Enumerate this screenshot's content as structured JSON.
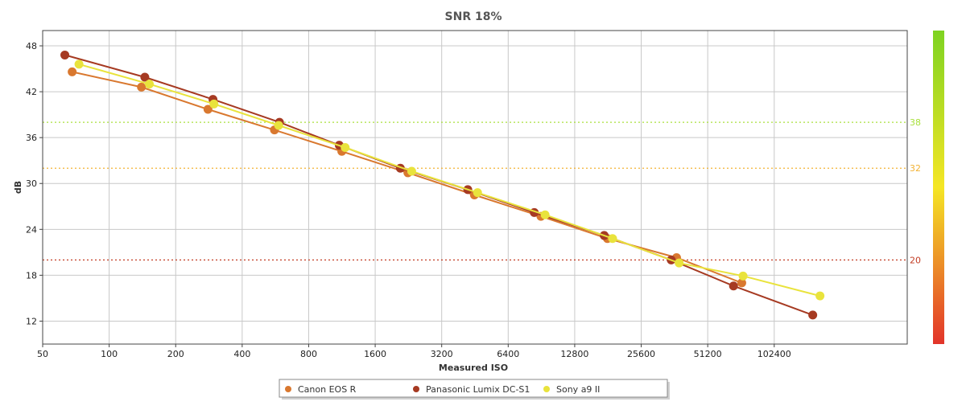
{
  "chart_data": {
    "type": "line",
    "title": "SNR 18%",
    "xlabel": "Measured ISO",
    "ylabel": "dB",
    "x_scale": "log2",
    "xlim": [
      50,
      409600
    ],
    "ylim": [
      9,
      50
    ],
    "x_ticks": [
      50,
      100,
      200,
      400,
      800,
      1600,
      3200,
      6400,
      12800,
      25600,
      51200,
      102400
    ],
    "x_tick_labels": [
      "50",
      "100",
      "200",
      "400",
      "800",
      "1600",
      "3200",
      "6400",
      "12800",
      "25600",
      "51200",
      "102400"
    ],
    "y_ticks": [
      12,
      18,
      24,
      30,
      36,
      42,
      48
    ],
    "y_tick_labels": [
      "12",
      "18",
      "24",
      "30",
      "36",
      "42",
      "48"
    ],
    "grid": true,
    "legend_position": "bottom-center",
    "reference_lines": [
      {
        "value": 38,
        "label": "38",
        "color": "#a8e03c"
      },
      {
        "value": 32,
        "label": "32",
        "color": "#f2b233"
      },
      {
        "value": 20,
        "label": "20",
        "color": "#c23b22"
      }
    ],
    "color_scale": {
      "colors": [
        "#7ed321",
        "#f5e625",
        "#e2342a"
      ]
    },
    "series": [
      {
        "name": "Canon EOS R",
        "color": "#d9782f",
        "points": [
          {
            "x": 68,
            "y": 44.6
          },
          {
            "x": 140,
            "y": 42.6
          },
          {
            "x": 280,
            "y": 39.7
          },
          {
            "x": 560,
            "y": 37.0
          },
          {
            "x": 1130,
            "y": 34.2
          },
          {
            "x": 2250,
            "y": 31.4
          },
          {
            "x": 4500,
            "y": 28.5
          },
          {
            "x": 9000,
            "y": 25.7
          },
          {
            "x": 18000,
            "y": 22.8
          },
          {
            "x": 37000,
            "y": 20.3
          },
          {
            "x": 73000,
            "y": 17.0
          }
        ]
      },
      {
        "name": "Panasonic Lumix DC-S1",
        "color": "#a63a22",
        "points": [
          {
            "x": 63,
            "y": 46.8
          },
          {
            "x": 145,
            "y": 43.9
          },
          {
            "x": 295,
            "y": 41.0
          },
          {
            "x": 590,
            "y": 38.0
          },
          {
            "x": 1100,
            "y": 35.0
          },
          {
            "x": 2080,
            "y": 32.0
          },
          {
            "x": 4200,
            "y": 29.2
          },
          {
            "x": 8400,
            "y": 26.2
          },
          {
            "x": 17400,
            "y": 23.2
          },
          {
            "x": 35000,
            "y": 20.0
          },
          {
            "x": 67000,
            "y": 16.6
          },
          {
            "x": 153000,
            "y": 12.8
          }
        ]
      },
      {
        "name": "Sony a9 II",
        "color": "#e9e33c",
        "points": [
          {
            "x": 73,
            "y": 45.6
          },
          {
            "x": 152,
            "y": 43.0
          },
          {
            "x": 298,
            "y": 40.4
          },
          {
            "x": 585,
            "y": 37.6
          },
          {
            "x": 1170,
            "y": 34.7
          },
          {
            "x": 2340,
            "y": 31.6
          },
          {
            "x": 4650,
            "y": 28.8
          },
          {
            "x": 9400,
            "y": 25.9
          },
          {
            "x": 19000,
            "y": 22.8
          },
          {
            "x": 38000,
            "y": 19.6
          },
          {
            "x": 74000,
            "y": 17.9
          },
          {
            "x": 165000,
            "y": 15.3
          }
        ]
      }
    ]
  }
}
